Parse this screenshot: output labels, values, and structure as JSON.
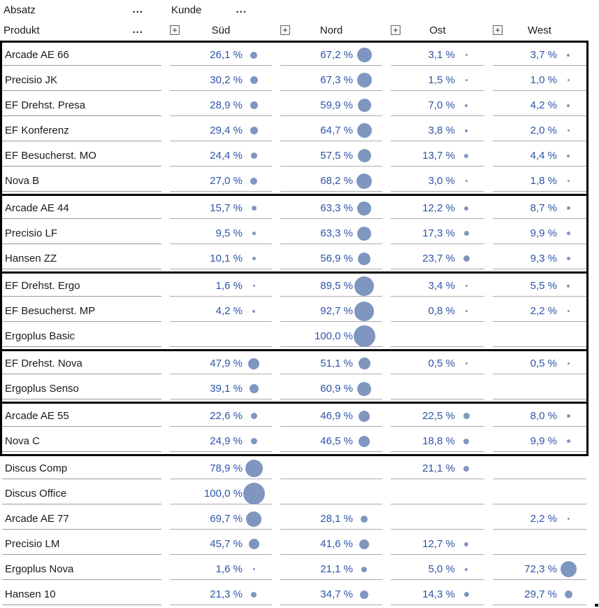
{
  "style": {
    "value_color": "#2d54a8",
    "bubble_color": "#7e96c0",
    "label_color": "#1a1a1a",
    "grid_line_color": "#ababab",
    "group_border_color": "#000000"
  },
  "header": {
    "measure": {
      "label": "Absatz",
      "menu_icon": "..."
    },
    "column_dimension": {
      "label": "Kunde",
      "menu_icon": "..."
    },
    "row_dimension": {
      "label": "Produkt",
      "menu_icon": "..."
    },
    "expand_glyph": "+",
    "columns": [
      {
        "id": "sued",
        "label": "Süd"
      },
      {
        "id": "nord",
        "label": "Nord"
      },
      {
        "id": "ost",
        "label": "Ost"
      },
      {
        "id": "west",
        "label": "West"
      }
    ]
  },
  "groups": [
    {
      "boxed": true,
      "rows": [
        {
          "product": "Arcade AE 66",
          "values": [
            {
              "text": "26,1 %",
              "pct": 26.1
            },
            {
              "text": "67,2 %",
              "pct": 67.2
            },
            {
              "text": "3,1 %",
              "pct": 3.1
            },
            {
              "text": "3,7 %",
              "pct": 3.7
            }
          ]
        },
        {
          "product": "Precisio JK",
          "values": [
            {
              "text": "30,2 %",
              "pct": 30.2
            },
            {
              "text": "67,3 %",
              "pct": 67.3
            },
            {
              "text": "1,5 %",
              "pct": 1.5
            },
            {
              "text": "1,0 %",
              "pct": 1.0
            }
          ]
        },
        {
          "product": "EF Drehst. Presa",
          "values": [
            {
              "text": "28,9 %",
              "pct": 28.9
            },
            {
              "text": "59,9 %",
              "pct": 59.9
            },
            {
              "text": "7,0 %",
              "pct": 7.0
            },
            {
              "text": "4,2 %",
              "pct": 4.2
            }
          ]
        },
        {
          "product": "EF Konferenz",
          "values": [
            {
              "text": "29,4 %",
              "pct": 29.4
            },
            {
              "text": "64,7 %",
              "pct": 64.7
            },
            {
              "text": "3,8 %",
              "pct": 3.8
            },
            {
              "text": "2,0 %",
              "pct": 2.0
            }
          ]
        },
        {
          "product": "EF Besucherst. MO",
          "values": [
            {
              "text": "24,4 %",
              "pct": 24.4
            },
            {
              "text": "57,5 %",
              "pct": 57.5
            },
            {
              "text": "13,7 %",
              "pct": 13.7
            },
            {
              "text": "4,4 %",
              "pct": 4.4
            }
          ]
        },
        {
          "product": "Nova B",
          "values": [
            {
              "text": "27,0 %",
              "pct": 27.0
            },
            {
              "text": "68,2 %",
              "pct": 68.2
            },
            {
              "text": "3,0 %",
              "pct": 3.0
            },
            {
              "text": "1,8 %",
              "pct": 1.8
            }
          ]
        }
      ]
    },
    {
      "boxed": true,
      "rows": [
        {
          "product": "Arcade AE 44",
          "values": [
            {
              "text": "15,7 %",
              "pct": 15.7
            },
            {
              "text": "63,3 %",
              "pct": 63.3
            },
            {
              "text": "12,2 %",
              "pct": 12.2
            },
            {
              "text": "8,7 %",
              "pct": 8.7
            }
          ]
        },
        {
          "product": "Precisio LF",
          "values": [
            {
              "text": "9,5 %",
              "pct": 9.5
            },
            {
              "text": "63,3 %",
              "pct": 63.3
            },
            {
              "text": "17,3 %",
              "pct": 17.3
            },
            {
              "text": "9,9 %",
              "pct": 9.9
            }
          ]
        },
        {
          "product": "Hansen ZZ",
          "values": [
            {
              "text": "10,1 %",
              "pct": 10.1
            },
            {
              "text": "56,9 %",
              "pct": 56.9
            },
            {
              "text": "23,7 %",
              "pct": 23.7
            },
            {
              "text": "9,3 %",
              "pct": 9.3
            }
          ]
        }
      ]
    },
    {
      "boxed": true,
      "rows": [
        {
          "product": "EF Drehst. Ergo",
          "values": [
            {
              "text": "1,6 %",
              "pct": 1.6
            },
            {
              "text": "89,5 %",
              "pct": 89.5
            },
            {
              "text": "3,4 %",
              "pct": 3.4
            },
            {
              "text": "5,5 %",
              "pct": 5.5
            }
          ]
        },
        {
          "product": "EF Besucherst. MP",
          "values": [
            {
              "text": "4,2 %",
              "pct": 4.2
            },
            {
              "text": "92,7 %",
              "pct": 92.7
            },
            {
              "text": "0,8 %",
              "pct": 0.8
            },
            {
              "text": "2,2 %",
              "pct": 2.2
            }
          ]
        },
        {
          "product": "Ergoplus Basic",
          "values": [
            null,
            {
              "text": "100,0 %",
              "pct": 100.0
            },
            null,
            null
          ]
        }
      ]
    },
    {
      "boxed": true,
      "rows": [
        {
          "product": "EF Drehst. Nova",
          "values": [
            {
              "text": "47,9 %",
              "pct": 47.9
            },
            {
              "text": "51,1 %",
              "pct": 51.1
            },
            {
              "text": "0,5 %",
              "pct": 0.5
            },
            {
              "text": "0,5 %",
              "pct": 0.5
            }
          ]
        },
        {
          "product": "Ergoplus Senso",
          "values": [
            {
              "text": "39,1 %",
              "pct": 39.1
            },
            {
              "text": "60,9 %",
              "pct": 60.9
            },
            null,
            null
          ]
        }
      ]
    },
    {
      "boxed": true,
      "rows": [
        {
          "product": "Arcade AE 55",
          "values": [
            {
              "text": "22,6 %",
              "pct": 22.6
            },
            {
              "text": "46,9 %",
              "pct": 46.9
            },
            {
              "text": "22,5 %",
              "pct": 22.5
            },
            {
              "text": "8,0 %",
              "pct": 8.0
            }
          ]
        },
        {
          "product": "Nova C",
          "values": [
            {
              "text": "24,9 %",
              "pct": 24.9
            },
            {
              "text": "46,5 %",
              "pct": 46.5
            },
            {
              "text": "18,8 %",
              "pct": 18.8
            },
            {
              "text": "9,9 %",
              "pct": 9.9
            }
          ]
        }
      ]
    },
    {
      "boxed": false,
      "rows": [
        {
          "product": "Discus Comp",
          "values": [
            {
              "text": "78,9 %",
              "pct": 78.9
            },
            null,
            {
              "text": "21,1 %",
              "pct": 21.1
            },
            null
          ]
        },
        {
          "product": "Discus Office",
          "values": [
            {
              "text": "100,0 %",
              "pct": 100.0
            },
            null,
            null,
            null
          ]
        },
        {
          "product": "Arcade AE 77",
          "values": [
            {
              "text": "69,7 %",
              "pct": 69.7
            },
            {
              "text": "28,1 %",
              "pct": 28.1
            },
            null,
            {
              "text": "2,2 %",
              "pct": 2.2
            }
          ]
        },
        {
          "product": "Precisio LM",
          "values": [
            {
              "text": "45,7 %",
              "pct": 45.7
            },
            {
              "text": "41,6 %",
              "pct": 41.6
            },
            {
              "text": "12,7 %",
              "pct": 12.7
            },
            null
          ]
        },
        {
          "product": "Ergoplus Nova",
          "values": [
            {
              "text": "1,6 %",
              "pct": 1.6
            },
            {
              "text": "21,1 %",
              "pct": 21.1
            },
            {
              "text": "5,0 %",
              "pct": 5.0
            },
            {
              "text": "72,3 %",
              "pct": 72.3
            }
          ]
        },
        {
          "product": "Hansen 10",
          "values": [
            {
              "text": "21,3 %",
              "pct": 21.3
            },
            {
              "text": "34,7 %",
              "pct": 34.7
            },
            {
              "text": "14,3 %",
              "pct": 14.3
            },
            {
              "text": "29,7 %",
              "pct": 29.7
            }
          ]
        }
      ]
    }
  ]
}
